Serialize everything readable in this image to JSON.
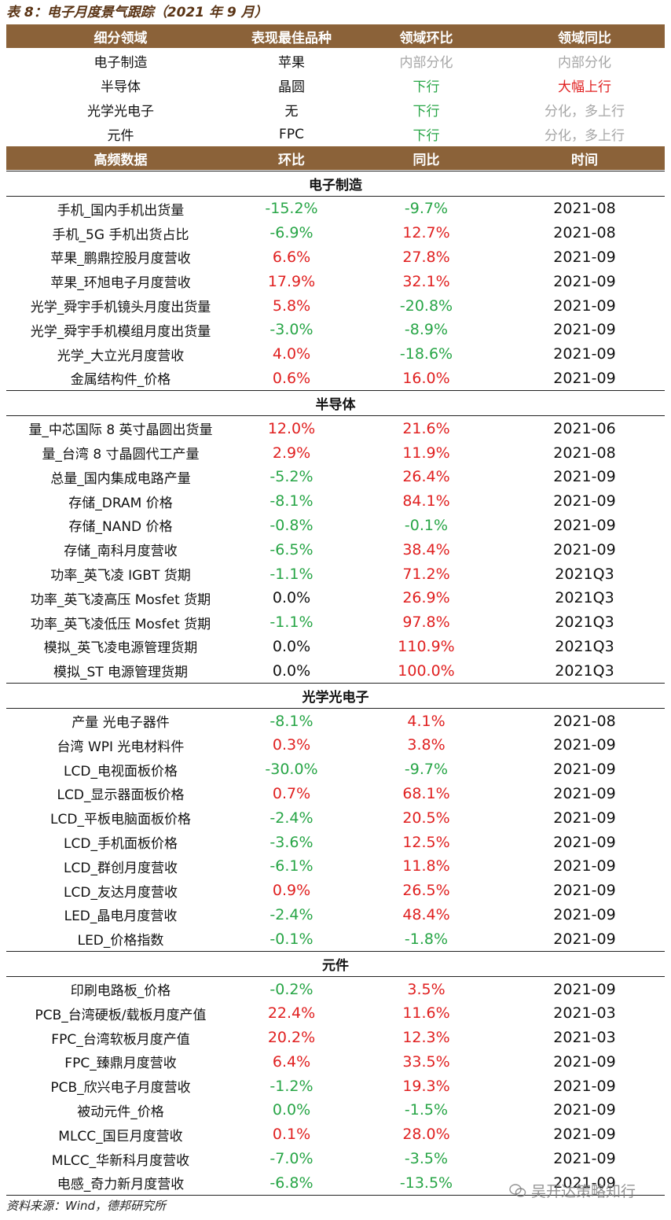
{
  "title": "表 8：电子月度景气跟踪（2021 年 9 月）",
  "header1": [
    "细分领域",
    "表现最佳品种",
    "领域环比",
    "领域同比"
  ],
  "summary_rows": [
    {
      "area": "电子制造",
      "best": "苹果",
      "mom": "内部分化",
      "mom_color": "gray",
      "yoy": "内部分化",
      "yoy_color": "gray"
    },
    {
      "area": "半导体",
      "best": "晶圆",
      "mom": "下行",
      "mom_color": "green",
      "yoy": "大幅上行",
      "yoy_color": "red"
    },
    {
      "area": "光学光电子",
      "best": "无",
      "mom": "下行",
      "mom_color": "green",
      "yoy": "分化，多上行",
      "yoy_color": "gray"
    },
    {
      "area": "元件",
      "best": "FPC",
      "mom": "下行",
      "mom_color": "green",
      "yoy": "分化，多上行",
      "yoy_color": "gray"
    }
  ],
  "header2": [
    "高频数据",
    "环比",
    "同比",
    "时间"
  ],
  "sections": [
    {
      "name": "电子制造",
      "rows": [
        {
          "item": "手机_国内手机出货量",
          "mom": "-15.2%",
          "mom_color": "green",
          "yoy": "-9.7%",
          "yoy_color": "green",
          "time": "2021-08"
        },
        {
          "item": "手机_5G 手机出货占比",
          "mom": "-6.9%",
          "mom_color": "green",
          "yoy": "12.7%",
          "yoy_color": "red",
          "time": "2021-08"
        },
        {
          "item": "苹果_鹏鼎控股月度营收",
          "mom": "6.6%",
          "mom_color": "red",
          "yoy": "27.8%",
          "yoy_color": "red",
          "time": "2021-09"
        },
        {
          "item": "苹果_环旭电子月度营收",
          "mom": "17.9%",
          "mom_color": "red",
          "yoy": "32.1%",
          "yoy_color": "red",
          "time": "2021-09"
        },
        {
          "item": "光学_舜宇手机镜头月度出货量",
          "mom": "5.8%",
          "mom_color": "red",
          "yoy": "-20.8%",
          "yoy_color": "green",
          "time": "2021-09"
        },
        {
          "item": "光学_舜宇手机模组月度出货量",
          "mom": "-3.0%",
          "mom_color": "green",
          "yoy": "-8.9%",
          "yoy_color": "green",
          "time": "2021-09"
        },
        {
          "item": "光学_大立光月度营收",
          "mom": "4.0%",
          "mom_color": "red",
          "yoy": "-18.6%",
          "yoy_color": "green",
          "time": "2021-09"
        },
        {
          "item": "金属结构件_价格",
          "mom": "0.6%",
          "mom_color": "red",
          "yoy": "16.0%",
          "yoy_color": "red",
          "time": "2021-09"
        }
      ]
    },
    {
      "name": "半导体",
      "rows": [
        {
          "item": "量_中芯国际 8 英寸晶圆出货量",
          "mom": "12.0%",
          "mom_color": "red",
          "yoy": "21.6%",
          "yoy_color": "red",
          "time": "2021-06"
        },
        {
          "item": "量_台湾 8 寸晶圆代工产量",
          "mom": "2.9%",
          "mom_color": "red",
          "yoy": "11.9%",
          "yoy_color": "red",
          "time": "2021-08"
        },
        {
          "item": "总量_国内集成电路产量",
          "mom": "-5.2%",
          "mom_color": "green",
          "yoy": "26.4%",
          "yoy_color": "red",
          "time": "2021-09"
        },
        {
          "item": "存储_DRAM 价格",
          "mom": "-8.1%",
          "mom_color": "green",
          "yoy": "84.1%",
          "yoy_color": "red",
          "time": "2021-09"
        },
        {
          "item": "存储_NAND 价格",
          "mom": "-0.8%",
          "mom_color": "green",
          "yoy": "-0.1%",
          "yoy_color": "green",
          "time": "2021-09"
        },
        {
          "item": "存储_南科月度营收",
          "mom": "-6.5%",
          "mom_color": "green",
          "yoy": "38.4%",
          "yoy_color": "red",
          "time": "2021-09"
        },
        {
          "item": "功率_英飞凌 IGBT 货期",
          "mom": "-1.1%",
          "mom_color": "green",
          "yoy": "71.2%",
          "yoy_color": "red",
          "time": "2021Q3"
        },
        {
          "item": "功率_英飞凌高压 Mosfet 货期",
          "mom": "0.0%",
          "mom_color": "black",
          "yoy": "26.9%",
          "yoy_color": "red",
          "time": "2021Q3"
        },
        {
          "item": "功率_英飞凌低压 Mosfet 货期",
          "mom": "-1.1%",
          "mom_color": "green",
          "yoy": "97.8%",
          "yoy_color": "red",
          "time": "2021Q3"
        },
        {
          "item": "模拟_英飞凌电源管理货期",
          "mom": "0.0%",
          "mom_color": "black",
          "yoy": "110.9%",
          "yoy_color": "red",
          "time": "2021Q3"
        },
        {
          "item": "模拟_ST 电源管理货期",
          "mom": "0.0%",
          "mom_color": "black",
          "yoy": "100.0%",
          "yoy_color": "red",
          "time": "2021Q3"
        }
      ]
    },
    {
      "name": "光学光电子",
      "rows": [
        {
          "item": "产量 光电子器件",
          "mom": "-8.1%",
          "mom_color": "green",
          "yoy": "4.1%",
          "yoy_color": "red",
          "time": "2021-08"
        },
        {
          "item": "台湾 WPI 光电材料件",
          "mom": "0.3%",
          "mom_color": "red",
          "yoy": "3.8%",
          "yoy_color": "red",
          "time": "2021-09"
        },
        {
          "item": "LCD_电视面板价格",
          "mom": "-30.0%",
          "mom_color": "green",
          "yoy": "-9.7%",
          "yoy_color": "green",
          "time": "2021-09"
        },
        {
          "item": "LCD_显示器面板价格",
          "mom": "0.7%",
          "mom_color": "red",
          "yoy": "68.1%",
          "yoy_color": "red",
          "time": "2021-09"
        },
        {
          "item": "LCD_平板电脑面板价格",
          "mom": "-2.4%",
          "mom_color": "green",
          "yoy": "20.5%",
          "yoy_color": "red",
          "time": "2021-09"
        },
        {
          "item": "LCD_手机面板价格",
          "mom": "-3.6%",
          "mom_color": "green",
          "yoy": "12.5%",
          "yoy_color": "red",
          "time": "2021-09"
        },
        {
          "item": "LCD_群创月度营收",
          "mom": "-6.1%",
          "mom_color": "green",
          "yoy": "11.8%",
          "yoy_color": "red",
          "time": "2021-09"
        },
        {
          "item": "LCD_友达月度营收",
          "mom": "0.9%",
          "mom_color": "red",
          "yoy": "26.5%",
          "yoy_color": "red",
          "time": "2021-09"
        },
        {
          "item": "LED_晶电月度营收",
          "mom": "-2.4%",
          "mom_color": "green",
          "yoy": "48.4%",
          "yoy_color": "red",
          "time": "2021-09"
        },
        {
          "item": "LED_价格指数",
          "mom": "-0.1%",
          "mom_color": "green",
          "yoy": "-1.8%",
          "yoy_color": "green",
          "time": "2021-09"
        }
      ]
    },
    {
      "name": "元件",
      "rows": [
        {
          "item": "印刷电路板_价格",
          "mom": "-0.2%",
          "mom_color": "green",
          "yoy": "3.5%",
          "yoy_color": "red",
          "time": "2021-09"
        },
        {
          "item": "PCB_台湾硬板/载板月度产值",
          "mom": "22.4%",
          "mom_color": "red",
          "yoy": "11.6%",
          "yoy_color": "red",
          "time": "2021-03"
        },
        {
          "item": "FPC_台湾软板月度产值",
          "mom": "20.2%",
          "mom_color": "red",
          "yoy": "12.3%",
          "yoy_color": "red",
          "time": "2021-03"
        },
        {
          "item": "FPC_臻鼎月度营收",
          "mom": "6.4%",
          "mom_color": "red",
          "yoy": "33.5%",
          "yoy_color": "red",
          "time": "2021-09"
        },
        {
          "item": "PCB_欣兴电子月度营收",
          "mom": "-1.2%",
          "mom_color": "green",
          "yoy": "19.3%",
          "yoy_color": "red",
          "time": "2021-09"
        },
        {
          "item": "被动元件_价格",
          "mom": "0.0%",
          "mom_color": "green",
          "yoy": "-1.5%",
          "yoy_color": "green",
          "time": "2021-09"
        },
        {
          "item": "MLCC_国巨月度营收",
          "mom": "0.1%",
          "mom_color": "red",
          "yoy": "28.0%",
          "yoy_color": "red",
          "time": "2021-09"
        },
        {
          "item": "MLCC_华新科月度营收",
          "mom": "-7.0%",
          "mom_color": "green",
          "yoy": "-3.5%",
          "yoy_color": "green",
          "time": "2021-09"
        },
        {
          "item": "电感_奇力新月度营收",
          "mom": "-6.8%",
          "mom_color": "green",
          "yoy": "-13.5%",
          "yoy_color": "green",
          "time": "2021-09"
        }
      ]
    }
  ],
  "source": "资料来源：Wind，德邦研究所",
  "watermark": "吴开达策略知行",
  "colors": {
    "header_bg": "#8b6239",
    "green": "#27a546",
    "red": "#e02020",
    "gray": "#a6a6a6"
  }
}
